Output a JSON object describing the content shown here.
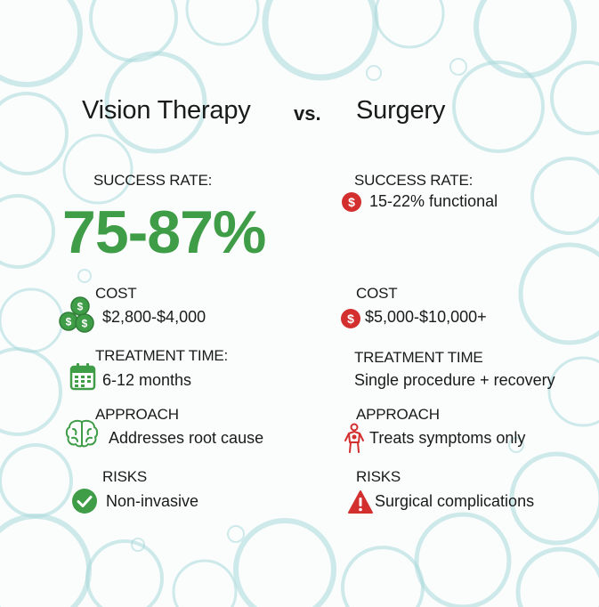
{
  "header": {
    "left_title": "Vision Therapy",
    "vs": "vs.",
    "right_title": "Surgery"
  },
  "left": {
    "success_label": "SUCCESS RATE:",
    "success_value": "75-87%",
    "cost_label": "COST",
    "cost_value": "$2,800-$4,000",
    "time_label": "TREATMENT TIME:",
    "time_value": "6-12 months",
    "approach_label": "APPROACH",
    "approach_value": "Addresses root cause",
    "risks_label": "RISKS",
    "risks_value": "Non-invasive"
  },
  "right": {
    "success_label": "SUCCESS RATE:",
    "success_value": "15-22% functional",
    "cost_label": "COST",
    "cost_value": "$5,000-$10,000+",
    "time_label": "TREATMENT TIME",
    "time_value": "Single procedure + recovery",
    "approach_label": "APPROACH",
    "approach_value": "Treats symptoms only",
    "risks_label": "RISKS",
    "risks_value": "Surgical complications"
  },
  "icons": {
    "coins": "coins-icon",
    "calendar": "calendar-icon",
    "brain": "brain-icon",
    "check": "checkmark-icon",
    "dollar": "dollar-icon",
    "person": "person-icon",
    "warning": "warning-icon"
  },
  "colors": {
    "green": "#3f9c47",
    "red": "#d32f2f",
    "bubble": "#9fd3d6"
  }
}
